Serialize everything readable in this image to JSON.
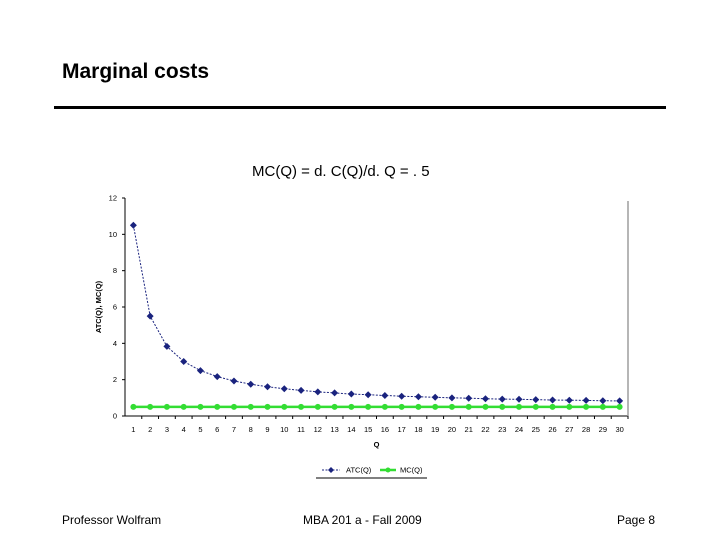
{
  "slide": {
    "title": "Marginal costs",
    "formula": "MC(Q) = d. C(Q)/d. Q = . 5"
  },
  "footer": {
    "left": "Professor Wolfram",
    "center": "MBA 201 a - Fall 2009",
    "right": "Page 8"
  },
  "colors": {
    "atc": "#1a237e",
    "mc": "#33dd33",
    "axis": "#000000"
  },
  "chart_data": {
    "type": "line",
    "xlabel": "Q",
    "ylabel": "ATC(Q), MC(Q)",
    "ylim": [
      0,
      12
    ],
    "yticks": [
      0,
      2,
      4,
      6,
      8,
      10,
      12
    ],
    "categories": [
      1,
      2,
      3,
      4,
      5,
      6,
      7,
      8,
      9,
      10,
      11,
      12,
      13,
      14,
      15,
      16,
      17,
      18,
      19,
      20,
      21,
      22,
      23,
      24,
      25,
      26,
      27,
      28,
      29,
      30
    ],
    "series": [
      {
        "name": "ATC(Q)",
        "marker": "diamond",
        "values": [
          10.5,
          5.5,
          3.83,
          3.0,
          2.5,
          2.17,
          1.93,
          1.75,
          1.61,
          1.5,
          1.41,
          1.33,
          1.27,
          1.21,
          1.17,
          1.13,
          1.09,
          1.06,
          1.03,
          1.0,
          0.98,
          0.95,
          0.93,
          0.92,
          0.9,
          0.88,
          0.87,
          0.86,
          0.84,
          0.83
        ]
      },
      {
        "name": "MC(Q)",
        "marker": "circle",
        "values": [
          0.5,
          0.5,
          0.5,
          0.5,
          0.5,
          0.5,
          0.5,
          0.5,
          0.5,
          0.5,
          0.5,
          0.5,
          0.5,
          0.5,
          0.5,
          0.5,
          0.5,
          0.5,
          0.5,
          0.5,
          0.5,
          0.5,
          0.5,
          0.5,
          0.5,
          0.5,
          0.5,
          0.5,
          0.5,
          0.5
        ]
      }
    ],
    "legend_position": "bottom"
  }
}
